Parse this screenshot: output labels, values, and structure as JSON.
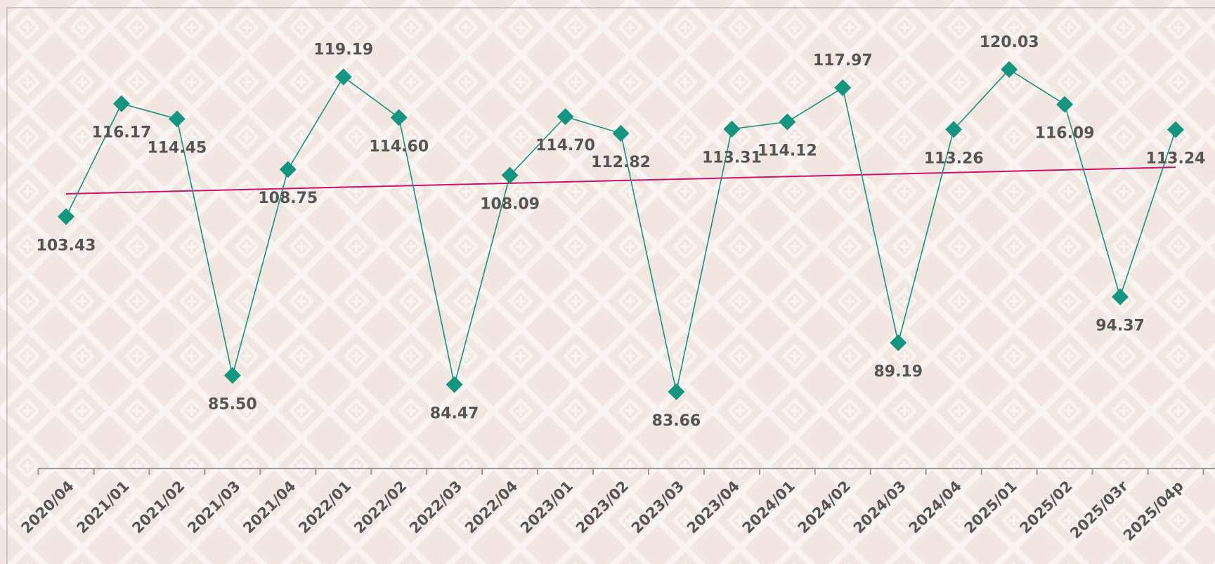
{
  "chart_data": {
    "type": "line",
    "categories": [
      "2020/04",
      "2021/01",
      "2021/02",
      "2021/03",
      "2021/04",
      "2022/01",
      "2022/02",
      "2022/03",
      "2022/04",
      "2023/01",
      "2023/02",
      "2023/03",
      "2023/04",
      "2024/01",
      "2024/02",
      "2024/03",
      "2024/04",
      "2025/01",
      "2025/02",
      "2025/03r",
      "2025/04p"
    ],
    "series": [
      {
        "color": "#14957f",
        "values": [
          103.43,
          116.17,
          114.45,
          85.5,
          108.75,
          119.19,
          114.6,
          84.47,
          108.09,
          114.7,
          112.82,
          83.66,
          113.31,
          114.12,
          117.97,
          89.19,
          113.26,
          120.03,
          116.09,
          94.37,
          113.24
        ],
        "value_labels": [
          "103.43",
          "116.17",
          "114.45",
          "85.50",
          "108.75",
          "119.19",
          "114.60",
          "84.47",
          "108.09",
          "114.70",
          "112.82",
          "83.66",
          "113.31",
          "114.12",
          "117.97",
          "89.19",
          "113.26",
          "120.03",
          "116.09",
          "94.37",
          "113.24"
        ]
      }
    ],
    "trendline": true,
    "trendline_color": "#c8146e",
    "ylim": [
      75,
      127
    ]
  }
}
